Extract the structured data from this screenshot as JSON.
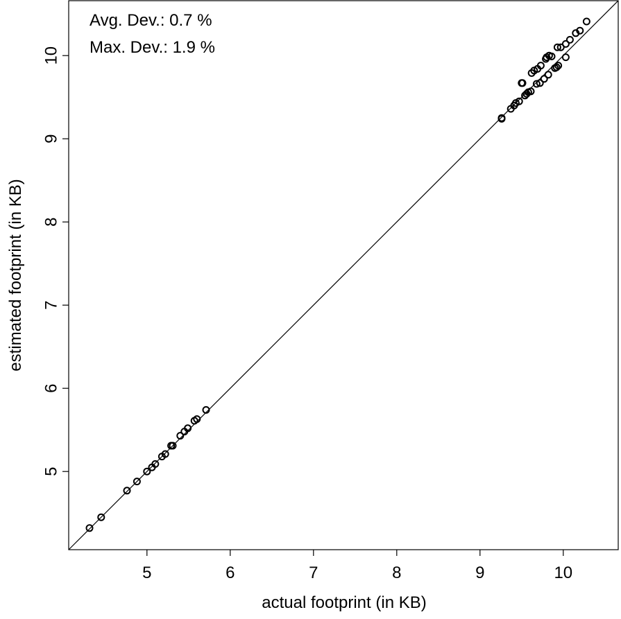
{
  "chart_data": {
    "type": "scatter",
    "xlabel": "actual footprint (in KB)",
    "ylabel": "estimated footprint (in KB)",
    "xlim": [
      4.06,
      10.66
    ],
    "ylim": [
      4.06,
      10.66
    ],
    "x_ticks": [
      5,
      6,
      7,
      8,
      9,
      10
    ],
    "y_ticks": [
      5,
      6,
      7,
      8,
      9,
      10
    ],
    "grid": false,
    "reference_line": "y = x",
    "annotations": [
      "Avg. Dev.: 0.7 %",
      "Max. Dev.: 1.9 %"
    ],
    "series": [
      {
        "points": [
          [
            4.31,
            4.32
          ],
          [
            4.45,
            4.45
          ],
          [
            4.76,
            4.77
          ],
          [
            4.88,
            4.88
          ],
          [
            5.0,
            5.0
          ],
          [
            5.06,
            5.05
          ],
          [
            5.1,
            5.09
          ],
          [
            5.18,
            5.18
          ],
          [
            5.22,
            5.21
          ],
          [
            5.29,
            5.31
          ],
          [
            5.31,
            5.31
          ],
          [
            5.4,
            5.43
          ],
          [
            5.45,
            5.48
          ],
          [
            5.49,
            5.52
          ],
          [
            5.57,
            5.61
          ],
          [
            5.6,
            5.63
          ],
          [
            5.71,
            5.74
          ],
          [
            9.26,
            9.24
          ],
          [
            9.26,
            9.25
          ],
          [
            9.37,
            9.36
          ],
          [
            9.41,
            9.4
          ],
          [
            9.43,
            9.43
          ],
          [
            9.47,
            9.45
          ],
          [
            9.5,
            9.67
          ],
          [
            9.51,
            9.67
          ],
          [
            9.54,
            9.52
          ],
          [
            9.56,
            9.54
          ],
          [
            9.58,
            9.56
          ],
          [
            9.61,
            9.57
          ],
          [
            9.62,
            9.79
          ],
          [
            9.65,
            9.82
          ],
          [
            9.68,
            9.66
          ],
          [
            9.69,
            9.84
          ],
          [
            9.72,
            9.67
          ],
          [
            9.73,
            9.88
          ],
          [
            9.77,
            9.72
          ],
          [
            9.79,
            9.96
          ],
          [
            9.82,
            9.77
          ],
          [
            9.8,
            9.98
          ],
          [
            9.83,
            10.0
          ],
          [
            9.86,
            9.99
          ],
          [
            9.9,
            9.85
          ],
          [
            9.92,
            9.86
          ],
          [
            9.94,
            9.88
          ],
          [
            9.93,
            10.1
          ],
          [
            9.97,
            10.1
          ],
          [
            10.03,
            9.98
          ],
          [
            10.03,
            10.14
          ],
          [
            10.08,
            10.19
          ],
          [
            10.15,
            10.27
          ],
          [
            10.2,
            10.3
          ],
          [
            10.28,
            10.41
          ]
        ]
      }
    ]
  }
}
